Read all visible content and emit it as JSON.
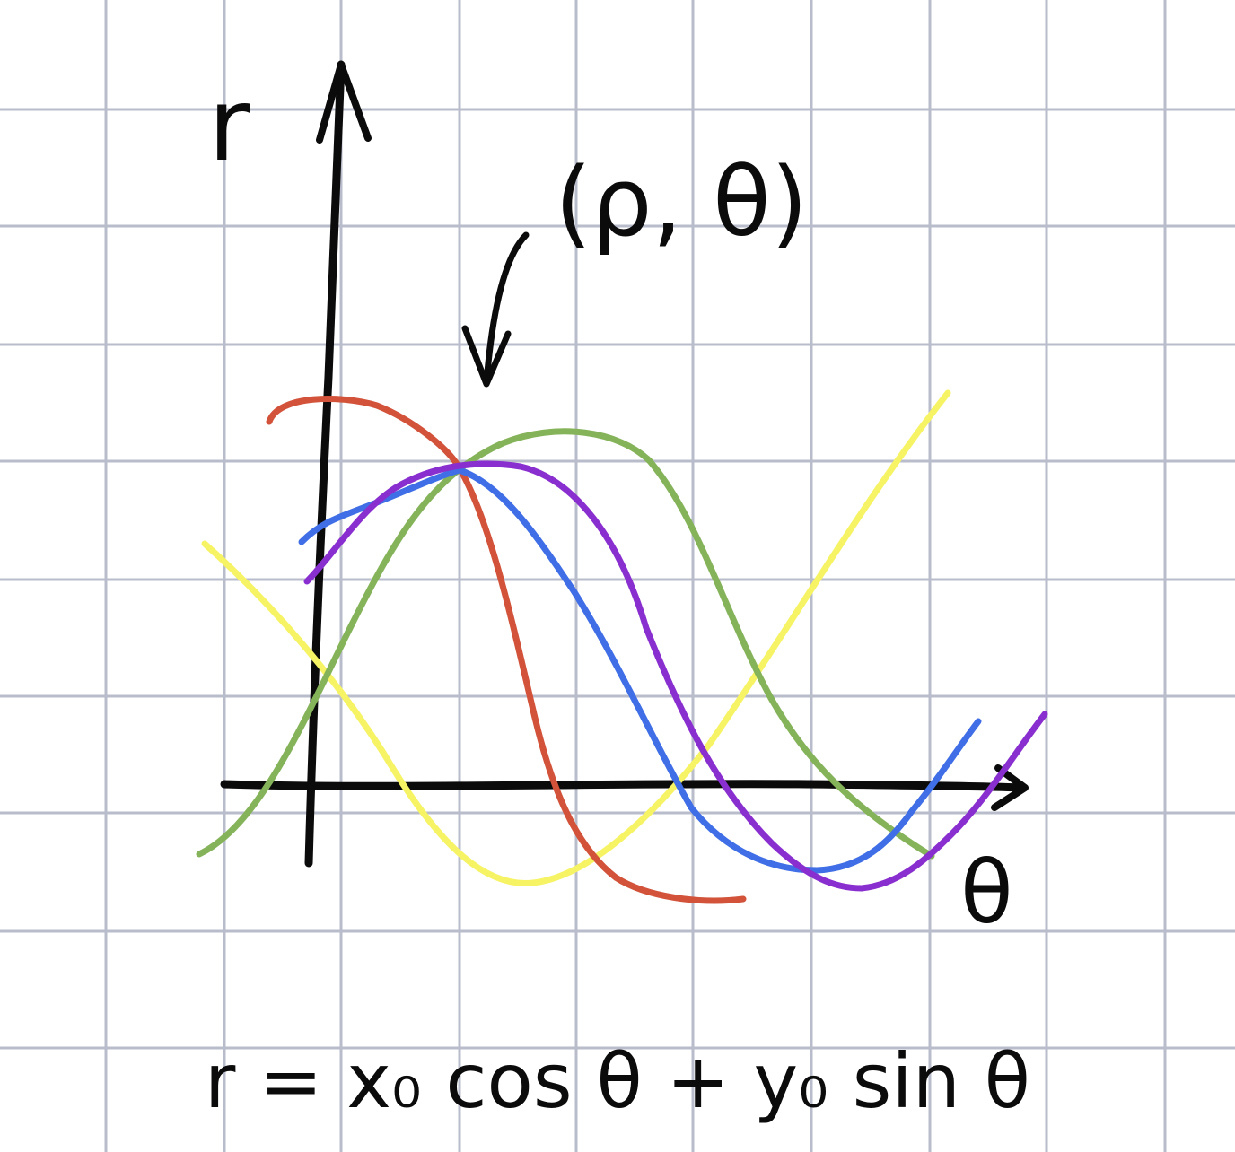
{
  "axes": {
    "y_label": "r",
    "x_label": "θ"
  },
  "annotation": {
    "label": "(ρ, θ)"
  },
  "equation": {
    "text": "r = x₀ cos θ + y₀ sin θ"
  },
  "curves": [
    {
      "id": "red",
      "color": "#d2523a"
    },
    {
      "id": "green",
      "color": "#85b35a"
    },
    {
      "id": "blue",
      "color": "#3f6ee6"
    },
    {
      "id": "purple",
      "color": "#8a2fcf"
    },
    {
      "id": "yellow",
      "color": "#f6f364"
    }
  ],
  "colors": {
    "grid": "#b9bccb",
    "ink": "#0b0b0b",
    "background": "#ffffff"
  }
}
